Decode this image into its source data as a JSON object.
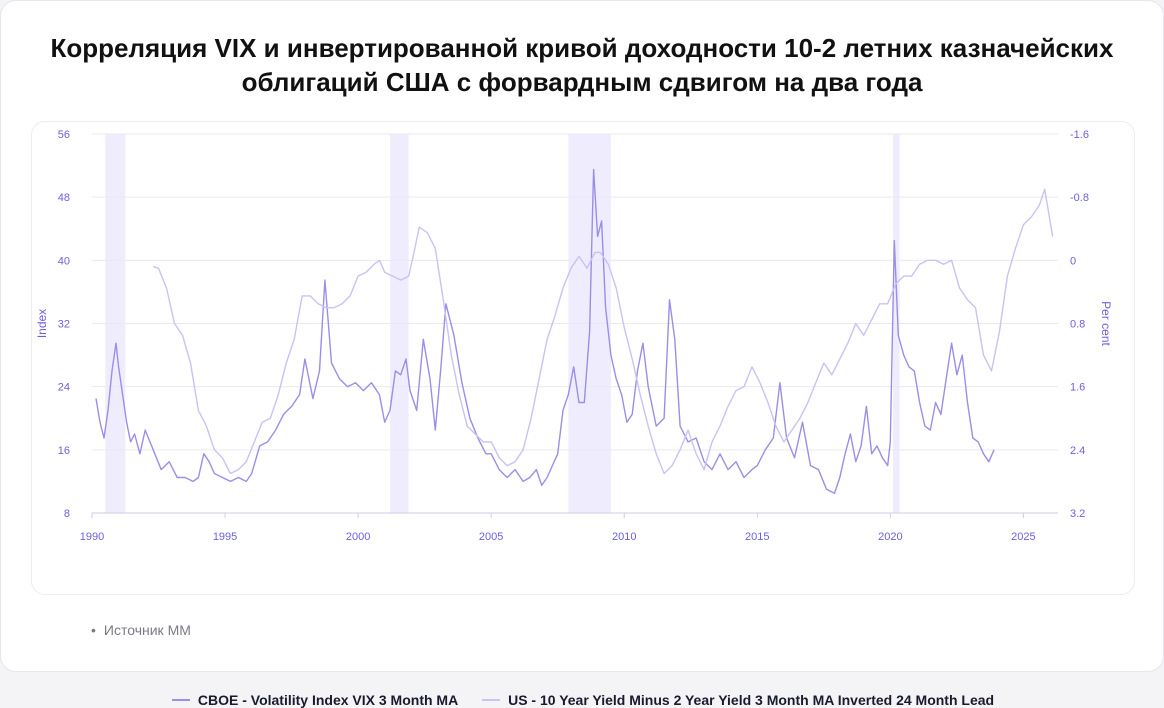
{
  "title": "Корреляция VIX и инвертированной кривой доходности 10-2 летних казначейских облигаций США с форвардным сдвигом на два года",
  "source": "Источник MM",
  "colors": {
    "vix": "#9a8fe6",
    "yield": "#c9c2f3",
    "shade": "#efedfd",
    "grid": "#e9e9f2",
    "axis": "#6b5fe0"
  },
  "chart_data": {
    "type": "line",
    "x_range": [
      1990,
      2026.3
    ],
    "x_ticks": [
      "1990",
      "1995",
      "2000",
      "2005",
      "2010",
      "2015",
      "2020",
      "2025"
    ],
    "left_axis": {
      "label": "Index",
      "range": [
        8,
        56
      ],
      "ticks": [
        "8",
        "16",
        "24",
        "32",
        "40",
        "48",
        "56"
      ]
    },
    "right_axis": {
      "label": "Per cent",
      "range": [
        3.2,
        -1.6
      ],
      "inverted": true,
      "ticks": [
        "3.2",
        "2.4",
        "1.6",
        "0.8",
        "0",
        "-0.8",
        "-1.6"
      ]
    },
    "recessions": [
      [
        1990.5,
        1991.25
      ],
      [
        2001.2,
        2001.9
      ],
      [
        2007.9,
        2009.5
      ],
      [
        2020.1,
        2020.35
      ]
    ],
    "series": [
      {
        "name": "CBOE - Volatility Index VIX 3 Month MA",
        "axis": "left",
        "x": [
          1990.15,
          1990.3,
          1990.45,
          1990.6,
          1990.75,
          1990.9,
          1991.0,
          1991.15,
          1991.3,
          1991.45,
          1991.6,
          1991.8,
          1992.0,
          1992.3,
          1992.6,
          1992.9,
          1993.2,
          1993.5,
          1993.8,
          1994.0,
          1994.2,
          1994.4,
          1994.6,
          1994.9,
          1995.2,
          1995.5,
          1995.8,
          1996.0,
          1996.3,
          1996.6,
          1996.9,
          1997.2,
          1997.5,
          1997.8,
          1998.0,
          1998.3,
          1998.55,
          1998.75,
          1999.0,
          1999.3,
          1999.6,
          1999.9,
          2000.2,
          2000.5,
          2000.8,
          2001.0,
          2001.2,
          2001.4,
          2001.6,
          2001.8,
          2001.95,
          2002.2,
          2002.45,
          2002.7,
          2002.9,
          2003.1,
          2003.3,
          2003.6,
          2003.9,
          2004.2,
          2004.5,
          2004.8,
          2005.0,
          2005.3,
          2005.6,
          2005.9,
          2006.2,
          2006.45,
          2006.7,
          2006.9,
          2007.1,
          2007.3,
          2007.5,
          2007.7,
          2007.9,
          2008.1,
          2008.3,
          2008.5,
          2008.7,
          2008.85,
          2009.0,
          2009.15,
          2009.3,
          2009.5,
          2009.7,
          2009.9,
          2010.1,
          2010.3,
          2010.5,
          2010.7,
          2010.9,
          2011.2,
          2011.5,
          2011.7,
          2011.9,
          2012.1,
          2012.4,
          2012.7,
          2013.0,
          2013.3,
          2013.6,
          2013.9,
          2014.2,
          2014.5,
          2014.8,
          2015.0,
          2015.3,
          2015.6,
          2015.85,
          2016.1,
          2016.4,
          2016.7,
          2017.0,
          2017.3,
          2017.6,
          2017.9,
          2018.1,
          2018.3,
          2018.5,
          2018.7,
          2018.9,
          2019.1,
          2019.3,
          2019.5,
          2019.7,
          2019.9,
          2020.0,
          2020.15,
          2020.3,
          2020.5,
          2020.7,
          2020.9,
          2021.1,
          2021.3,
          2021.5,
          2021.7,
          2021.9,
          2022.1,
          2022.3,
          2022.5,
          2022.7,
          2022.9,
          2023.1,
          2023.3,
          2023.5,
          2023.7,
          2023.9
        ],
        "values": [
          22.5,
          19.5,
          17.5,
          21.0,
          26.0,
          29.5,
          26.5,
          23.0,
          19.5,
          17.0,
          18.0,
          15.5,
          18.5,
          16.0,
          13.5,
          14.5,
          12.5,
          12.5,
          12.0,
          12.5,
          15.5,
          14.5,
          13.0,
          12.5,
          12.0,
          12.5,
          12.0,
          13.0,
          16.5,
          17.0,
          18.5,
          20.5,
          21.5,
          23.0,
          27.5,
          22.5,
          26.0,
          37.5,
          27.0,
          25.0,
          24.0,
          24.5,
          23.5,
          24.5,
          23.0,
          19.5,
          21.0,
          26.0,
          25.5,
          27.5,
          23.5,
          21.0,
          30.0,
          25.0,
          18.5,
          26.0,
          34.5,
          30.5,
          24.5,
          20.0,
          17.5,
          15.5,
          15.5,
          13.5,
          12.5,
          13.5,
          12.0,
          12.5,
          13.5,
          11.5,
          12.5,
          14.0,
          15.5,
          21.0,
          23.0,
          26.5,
          22.0,
          22.0,
          31.0,
          51.5,
          43.0,
          45.0,
          34.0,
          28.0,
          25.0,
          23.0,
          19.5,
          20.5,
          26.0,
          29.5,
          24.0,
          19.0,
          20.0,
          35.0,
          30.0,
          19.0,
          17.0,
          17.5,
          14.5,
          13.5,
          15.5,
          13.5,
          14.5,
          12.5,
          13.5,
          14.0,
          16.0,
          17.5,
          24.5,
          17.5,
          15.0,
          19.5,
          14.0,
          13.5,
          11.0,
          10.5,
          12.5,
          15.5,
          18.0,
          14.5,
          16.5,
          21.5,
          15.5,
          16.5,
          15.0,
          14.0,
          17.0,
          42.5,
          30.5,
          28.0,
          26.5,
          26.0,
          22.0,
          19.0,
          18.5,
          22.0,
          20.5,
          25.0,
          29.5,
          25.5,
          28.0,
          22.0,
          17.5,
          17.0,
          15.5,
          14.5,
          16.0
        ]
      },
      {
        "name": "US - 10 Year Yield Minus 2 Year Yield 3 Month MA Inverted 24 Month Lead",
        "axis": "right",
        "x": [
          1992.3,
          1992.5,
          1992.8,
          1993.1,
          1993.4,
          1993.7,
          1994.0,
          1994.3,
          1994.6,
          1994.9,
          1995.2,
          1995.5,
          1995.8,
          1996.1,
          1996.4,
          1996.7,
          1997.0,
          1997.3,
          1997.6,
          1997.9,
          1998.2,
          1998.5,
          1998.8,
          1999.1,
          1999.4,
          1999.7,
          2000.0,
          2000.3,
          2000.6,
          2000.8,
          2001.0,
          2001.3,
          2001.6,
          2001.9,
          2002.1,
          2002.3,
          2002.6,
          2002.9,
          2003.2,
          2003.5,
          2003.8,
          2004.1,
          2004.4,
          2004.7,
          2005.0,
          2005.3,
          2005.6,
          2005.9,
          2006.2,
          2006.5,
          2006.8,
          2007.1,
          2007.4,
          2007.7,
          2008.0,
          2008.3,
          2008.6,
          2008.9,
          2009.1,
          2009.4,
          2009.7,
          2010.0,
          2010.3,
          2010.6,
          2010.9,
          2011.2,
          2011.5,
          2011.8,
          2012.1,
          2012.4,
          2012.7,
          2013.0,
          2013.3,
          2013.6,
          2013.9,
          2014.2,
          2014.5,
          2014.8,
          2015.1,
          2015.4,
          2015.7,
          2016.0,
          2016.3,
          2016.6,
          2016.9,
          2017.2,
          2017.5,
          2017.8,
          2018.1,
          2018.4,
          2018.7,
          2019.0,
          2019.3,
          2019.6,
          2019.9,
          2020.2,
          2020.5,
          2020.8,
          2021.1,
          2021.4,
          2021.7,
          2022.0,
          2022.3,
          2022.6,
          2022.9,
          2023.2,
          2023.5,
          2023.8,
          2024.1,
          2024.4,
          2024.7,
          2025.0,
          2025.3,
          2025.6,
          2025.8,
          2026.0,
          2026.1
        ],
        "values": [
          0.08,
          0.1,
          0.35,
          0.8,
          0.95,
          1.3,
          1.9,
          2.1,
          2.4,
          2.5,
          2.7,
          2.65,
          2.55,
          2.3,
          2.05,
          2.0,
          1.7,
          1.3,
          1.0,
          0.45,
          0.45,
          0.55,
          0.6,
          0.6,
          0.55,
          0.45,
          0.2,
          0.15,
          0.05,
          0.0,
          0.15,
          0.2,
          0.25,
          0.2,
          -0.1,
          -0.42,
          -0.35,
          -0.15,
          0.5,
          1.2,
          1.7,
          2.1,
          2.2,
          2.3,
          2.3,
          2.5,
          2.6,
          2.55,
          2.4,
          2.0,
          1.5,
          1.0,
          0.7,
          0.35,
          0.1,
          -0.05,
          0.1,
          -0.1,
          -0.1,
          0.05,
          0.35,
          0.85,
          1.25,
          1.7,
          2.1,
          2.45,
          2.7,
          2.6,
          2.4,
          2.15,
          2.45,
          2.65,
          2.3,
          2.1,
          1.85,
          1.65,
          1.6,
          1.35,
          1.55,
          1.8,
          2.1,
          2.3,
          2.15,
          2.0,
          1.8,
          1.55,
          1.3,
          1.45,
          1.25,
          1.05,
          0.8,
          0.95,
          0.75,
          0.55,
          0.55,
          0.3,
          0.2,
          0.2,
          0.05,
          0.0,
          0.0,
          0.05,
          0.0,
          0.35,
          0.5,
          0.6,
          1.2,
          1.4,
          0.9,
          0.2,
          -0.15,
          -0.45,
          -0.55,
          -0.7,
          -0.9,
          -0.5,
          -0.3
        ]
      }
    ]
  }
}
